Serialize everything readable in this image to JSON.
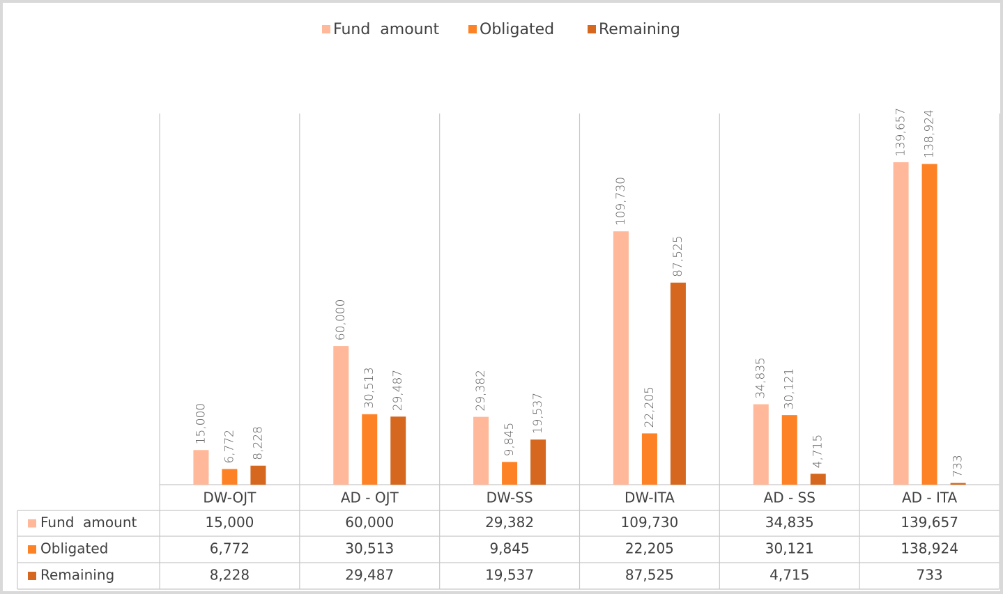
{
  "chart_data": {
    "type": "bar",
    "categories": [
      "DW-OJT",
      "AD - OJT",
      "DW-SS",
      "DW-ITA",
      "AD - SS",
      "AD - ITA"
    ],
    "legend": "top",
    "series": [
      {
        "name": "Fund  amount",
        "color": "#ffb899",
        "values": [
          15000,
          60000,
          29382,
          109730,
          34835,
          139657
        ],
        "value_labels": [
          "15,000",
          "60,000",
          "29,382",
          "109,730",
          "34,835",
          "139,657"
        ]
      },
      {
        "name": "Obligated",
        "color": "#fd8226",
        "values": [
          6772,
          30513,
          9845,
          22205,
          30121,
          138924
        ],
        "value_labels": [
          "6,772",
          "30,513",
          "9,845",
          "22,205",
          "30,121",
          "138,924"
        ]
      },
      {
        "name": "Remaining",
        "color": "#d5681e",
        "values": [
          8228,
          29487,
          19537,
          87525,
          4715,
          733
        ],
        "value_labels": [
          "8,228",
          "29,487",
          "19,537",
          "87,525",
          "4,715",
          "733"
        ]
      }
    ]
  }
}
